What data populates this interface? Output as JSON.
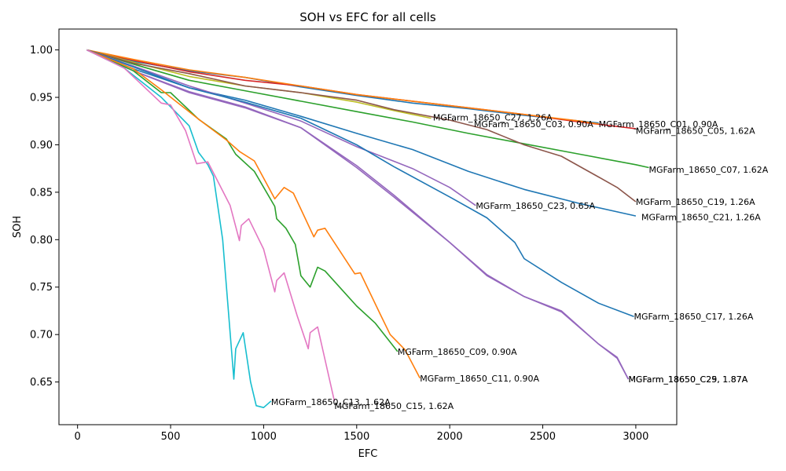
{
  "chart_data": {
    "type": "line",
    "title": "SOH vs EFC for all cells",
    "xlabel": "EFC",
    "ylabel": "SOH",
    "xlim": [
      -100,
      3220
    ],
    "ylim": [
      0.605,
      1.022
    ],
    "xticks": [
      0,
      500,
      1000,
      1500,
      2000,
      2500,
      3000
    ],
    "xtick_labels": [
      "0",
      "500",
      "1000",
      "1500",
      "2000",
      "2500",
      "3000"
    ],
    "yticks": [
      0.65,
      0.7,
      0.75,
      0.8,
      0.85,
      0.9,
      0.95,
      1.0
    ],
    "ytick_labels": [
      "0.65",
      "0.70",
      "0.75",
      "0.80",
      "0.85",
      "0.90",
      "0.95",
      "1.00"
    ],
    "grid": false,
    "legend": "none",
    "series": [
      {
        "name": "MGFarm_18650_C01, 0.90A",
        "color": "#1f77b4",
        "label_pos": [
          2800,
          0.922
        ],
        "points": [
          [
            50,
            1.0
          ],
          [
            300,
            0.988
          ],
          [
            600,
            0.978
          ],
          [
            900,
            0.971
          ],
          [
            1200,
            0.961
          ],
          [
            1500,
            0.952
          ],
          [
            1800,
            0.944
          ],
          [
            2100,
            0.938
          ],
          [
            2400,
            0.931
          ],
          [
            2700,
            0.925
          ],
          [
            2800,
            0.923
          ]
        ]
      },
      {
        "name": "MGFarm_18650_C05, 1.62A",
        "color": "#d62728",
        "label_pos": [
          3000,
          0.915
        ],
        "points": [
          [
            50,
            1.0
          ],
          [
            300,
            0.989
          ],
          [
            600,
            0.977
          ],
          [
            900,
            0.968
          ],
          [
            1200,
            0.962
          ],
          [
            1500,
            0.953
          ],
          [
            1800,
            0.946
          ],
          [
            2100,
            0.939
          ],
          [
            2400,
            0.932
          ],
          [
            2700,
            0.924
          ],
          [
            3000,
            0.917
          ]
        ]
      },
      {
        "name": "MGFarm_18650_C27, 1.26A",
        "color": "#ff7f0e",
        "label_pos": [
          1910,
          0.929
        ],
        "points": [
          [
            50,
            1.0
          ],
          [
            300,
            0.99
          ],
          [
            600,
            0.979
          ],
          [
            900,
            0.971
          ],
          [
            1200,
            0.962
          ],
          [
            1500,
            0.953
          ],
          [
            1800,
            0.946
          ],
          [
            2100,
            0.939
          ],
          [
            2400,
            0.932
          ],
          [
            2700,
            0.925
          ],
          [
            2800,
            0.922
          ]
        ]
      },
      {
        "name": "MGFarm_18650_C03, 0.90A",
        "color": "#bcbd22",
        "label_pos": [
          2130,
          0.922
        ],
        "points": [
          [
            50,
            1.0
          ],
          [
            300,
            0.987
          ],
          [
            600,
            0.972
          ],
          [
            900,
            0.962
          ],
          [
            1200,
            0.955
          ],
          [
            1500,
            0.945
          ],
          [
            1700,
            0.936
          ],
          [
            1900,
            0.928
          ]
        ]
      },
      {
        "name": "MGFarm_18650_C07, 1.62A",
        "color": "#2ca02c",
        "label_pos": [
          3070,
          0.874
        ],
        "points": [
          [
            50,
            1.0
          ],
          [
            300,
            0.985
          ],
          [
            600,
            0.968
          ],
          [
            900,
            0.957
          ],
          [
            1200,
            0.946
          ],
          [
            1500,
            0.935
          ],
          [
            1800,
            0.924
          ],
          [
            2100,
            0.912
          ],
          [
            2400,
            0.901
          ],
          [
            2700,
            0.89
          ],
          [
            3000,
            0.879
          ],
          [
            3070,
            0.876
          ]
        ]
      },
      {
        "name": "MGFarm_18650_C19, 1.26A",
        "color": "#8c564b",
        "label_pos": [
          3000,
          0.84
        ],
        "points": [
          [
            50,
            1.0
          ],
          [
            300,
            0.986
          ],
          [
            600,
            0.975
          ],
          [
            900,
            0.962
          ],
          [
            1200,
            0.955
          ],
          [
            1500,
            0.947
          ],
          [
            1700,
            0.937
          ],
          [
            2000,
            0.926
          ],
          [
            2200,
            0.916
          ],
          [
            2400,
            0.9
          ],
          [
            2600,
            0.888
          ],
          [
            2800,
            0.866
          ],
          [
            2900,
            0.855
          ],
          [
            3000,
            0.84
          ]
        ]
      },
      {
        "name": "MGFarm_18650_C21, 1.26A",
        "color": "#1f77b4",
        "label_pos": [
          3030,
          0.824
        ],
        "points": [
          [
            50,
            1.0
          ],
          [
            300,
            0.98
          ],
          [
            600,
            0.96
          ],
          [
            900,
            0.947
          ],
          [
            1200,
            0.93
          ],
          [
            1500,
            0.912
          ],
          [
            1800,
            0.895
          ],
          [
            2100,
            0.872
          ],
          [
            2400,
            0.853
          ],
          [
            2700,
            0.838
          ],
          [
            3000,
            0.825
          ]
        ]
      },
      {
        "name": "MGFarm_18650_C23, 0.65A",
        "color": "#9467bd",
        "label_pos": [
          2140,
          0.836
        ],
        "points": [
          [
            50,
            1.0
          ],
          [
            300,
            0.983
          ],
          [
            600,
            0.962
          ],
          [
            900,
            0.944
          ],
          [
            1200,
            0.925
          ],
          [
            1500,
            0.898
          ],
          [
            1800,
            0.875
          ],
          [
            2000,
            0.855
          ],
          [
            2140,
            0.836
          ]
        ]
      },
      {
        "name": "MGFarm_18650_C17, 1.26A",
        "color": "#1f77b4",
        "label_pos": [
          2990,
          0.719
        ],
        "points": [
          [
            50,
            1.0
          ],
          [
            300,
            0.982
          ],
          [
            600,
            0.96
          ],
          [
            900,
            0.945
          ],
          [
            1200,
            0.928
          ],
          [
            1500,
            0.9
          ],
          [
            1700,
            0.877
          ],
          [
            2000,
            0.845
          ],
          [
            2200,
            0.823
          ],
          [
            2350,
            0.797
          ],
          [
            2400,
            0.78
          ],
          [
            2600,
            0.755
          ],
          [
            2800,
            0.733
          ],
          [
            2990,
            0.719
          ]
        ]
      },
      {
        "name": "MGFarm_18650_C25, 1.87A",
        "color": "#9467bd",
        "label_pos": [
          2960,
          0.653
        ],
        "points": [
          [
            50,
            1.0
          ],
          [
            300,
            0.978
          ],
          [
            600,
            0.955
          ],
          [
            900,
            0.939
          ],
          [
            1200,
            0.918
          ],
          [
            1500,
            0.876
          ],
          [
            1700,
            0.845
          ],
          [
            2000,
            0.797
          ],
          [
            2200,
            0.763
          ],
          [
            2400,
            0.74
          ],
          [
            2600,
            0.725
          ],
          [
            2800,
            0.69
          ],
          [
            2900,
            0.675
          ],
          [
            2960,
            0.653
          ]
        ]
      },
      {
        "name": "MGFarm_18650_C29, 1.87A",
        "color": "#9467bd",
        "label_pos": [
          2960,
          0.653
        ],
        "points": [
          [
            50,
            1.0
          ],
          [
            300,
            0.978
          ],
          [
            600,
            0.956
          ],
          [
            900,
            0.94
          ],
          [
            1200,
            0.918
          ],
          [
            1500,
            0.878
          ],
          [
            1700,
            0.847
          ],
          [
            2000,
            0.797
          ],
          [
            2200,
            0.762
          ],
          [
            2400,
            0.74
          ],
          [
            2600,
            0.724
          ],
          [
            2800,
            0.69
          ],
          [
            2900,
            0.676
          ],
          [
            2960,
            0.653
          ]
        ]
      },
      {
        "name": "MGFarm_18650_C09, 0.90A",
        "color": "#2ca02c",
        "label_pos": [
          1720,
          0.682
        ],
        "points": [
          [
            50,
            1.0
          ],
          [
            300,
            0.978
          ],
          [
            450,
            0.955
          ],
          [
            500,
            0.955
          ],
          [
            650,
            0.927
          ],
          [
            800,
            0.906
          ],
          [
            850,
            0.89
          ],
          [
            950,
            0.872
          ],
          [
            1060,
            0.835
          ],
          [
            1070,
            0.822
          ],
          [
            1120,
            0.812
          ],
          [
            1170,
            0.795
          ],
          [
            1200,
            0.762
          ],
          [
            1250,
            0.75
          ],
          [
            1290,
            0.771
          ],
          [
            1330,
            0.767
          ],
          [
            1500,
            0.73
          ],
          [
            1600,
            0.712
          ],
          [
            1720,
            0.682
          ]
        ]
      },
      {
        "name": "MGFarm_18650_C11, 0.90A",
        "color": "#ff7f0e",
        "label_pos": [
          1840,
          0.654
        ],
        "points": [
          [
            50,
            1.0
          ],
          [
            300,
            0.98
          ],
          [
            450,
            0.958
          ],
          [
            650,
            0.927
          ],
          [
            800,
            0.905
          ],
          [
            870,
            0.893
          ],
          [
            950,
            0.883
          ],
          [
            1060,
            0.843
          ],
          [
            1110,
            0.855
          ],
          [
            1160,
            0.849
          ],
          [
            1270,
            0.803
          ],
          [
            1290,
            0.81
          ],
          [
            1330,
            0.812
          ],
          [
            1490,
            0.764
          ],
          [
            1520,
            0.765
          ],
          [
            1630,
            0.72
          ],
          [
            1680,
            0.7
          ],
          [
            1760,
            0.684
          ],
          [
            1840,
            0.654
          ]
        ]
      },
      {
        "name": "MGFarm_18650_C13, 1.62A",
        "color": "#17becf",
        "label_pos": [
          1040,
          0.629
        ],
        "points": [
          [
            50,
            1.0
          ],
          [
            250,
            0.981
          ],
          [
            450,
            0.95
          ],
          [
            600,
            0.92
          ],
          [
            650,
            0.892
          ],
          [
            700,
            0.879
          ],
          [
            730,
            0.867
          ],
          [
            780,
            0.8
          ],
          [
            840,
            0.653
          ],
          [
            850,
            0.685
          ],
          [
            890,
            0.702
          ],
          [
            930,
            0.65
          ],
          [
            960,
            0.625
          ],
          [
            1000,
            0.623
          ],
          [
            1040,
            0.63
          ]
        ]
      },
      {
        "name": "MGFarm_18650_C15, 1.62A",
        "color": "#e377c2",
        "label_pos": [
          1380,
          0.625
        ],
        "points": [
          [
            50,
            1.0
          ],
          [
            250,
            0.981
          ],
          [
            450,
            0.944
          ],
          [
            500,
            0.942
          ],
          [
            580,
            0.915
          ],
          [
            640,
            0.88
          ],
          [
            700,
            0.882
          ],
          [
            750,
            0.863
          ],
          [
            820,
            0.836
          ],
          [
            870,
            0.799
          ],
          [
            880,
            0.815
          ],
          [
            920,
            0.822
          ],
          [
            1000,
            0.79
          ],
          [
            1060,
            0.745
          ],
          [
            1070,
            0.757
          ],
          [
            1110,
            0.765
          ],
          [
            1180,
            0.72
          ],
          [
            1240,
            0.685
          ],
          [
            1250,
            0.702
          ],
          [
            1290,
            0.708
          ],
          [
            1380,
            0.63
          ]
        ]
      }
    ]
  }
}
